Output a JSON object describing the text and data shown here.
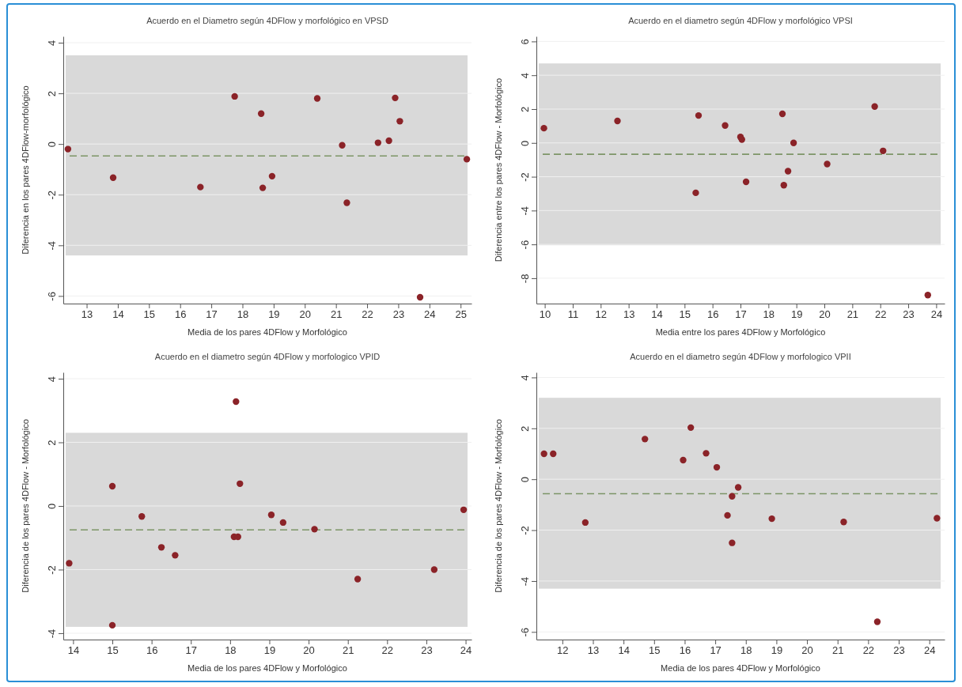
{
  "chart_data": [
    {
      "type": "scatter",
      "title": "Acuerdo en el Diametro según 4DFlow y morfológico en VPSD",
      "xlabel": "Media de los pares 4DFlow y Morfológico",
      "ylabel": "Diferencia en los pares 4DFlow-morfológico",
      "xlim": [
        12.25,
        25.35
      ],
      "ylim": [
        -6.3,
        4.25
      ],
      "xticks": [
        13,
        14,
        15,
        16,
        17,
        18,
        19,
        20,
        21,
        22,
        23,
        24,
        25
      ],
      "yticks": [
        -6,
        -4,
        -2,
        0,
        2,
        4
      ],
      "grid": "y",
      "marker": "circle",
      "bands": [
        {
          "axis": "y",
          "from": -4.4,
          "to": 3.5,
          "color": "#d9d9d9"
        }
      ],
      "ref_lines": [
        {
          "axis": "y",
          "value": -0.47,
          "color": "#7d9567",
          "line_style": "dashed"
        }
      ],
      "series": [
        {
          "color": "#8b2328",
          "x": [
            12.4,
            13.85,
            16.65,
            17.75,
            18.6,
            18.65,
            18.95,
            20.4,
            21.2,
            21.35,
            22.35,
            22.7,
            22.9,
            23.05,
            23.7,
            25.2
          ],
          "values": [
            -0.2,
            -1.33,
            -1.7,
            1.88,
            1.2,
            -1.73,
            -1.27,
            1.8,
            -0.05,
            -2.32,
            0.05,
            0.13,
            1.82,
            0.9,
            -6.05,
            -0.6
          ]
        }
      ]
    },
    {
      "type": "scatter",
      "title": "Acuerdo en el diametro según 4DFlow y morfológico VPSI",
      "xlabel": "Media entre los pares 4DFlow y Morfológico",
      "ylabel": "Diferencia entre los pares 4DFlow - Morfológico",
      "xlim": [
        9.7,
        24.3
      ],
      "ylim": [
        -9.5,
        6.3
      ],
      "xticks": [
        10,
        11,
        12,
        13,
        14,
        15,
        16,
        17,
        18,
        19,
        20,
        21,
        22,
        23,
        24
      ],
      "yticks": [
        -8,
        -6,
        -4,
        -2,
        0,
        2,
        4,
        6
      ],
      "grid": "y",
      "marker": "circle",
      "bands": [
        {
          "axis": "y",
          "from": -6.05,
          "to": 4.7,
          "color": "#d9d9d9"
        }
      ],
      "ref_lines": [
        {
          "axis": "y",
          "value": -0.67,
          "color": "#7d9567",
          "line_style": "dashed"
        }
      ],
      "series": [
        {
          "color": "#8b2328",
          "x": [
            9.97,
            12.6,
            15.4,
            15.5,
            16.45,
            17.0,
            17.05,
            17.2,
            18.5,
            18.55,
            18.7,
            18.9,
            20.1,
            21.8,
            22.1,
            23.7
          ],
          "values": [
            0.87,
            1.3,
            -2.95,
            1.62,
            1.03,
            0.35,
            0.2,
            -2.3,
            1.72,
            -2.5,
            -1.67,
            0.0,
            -1.25,
            2.15,
            -0.47,
            -9.0
          ]
        }
      ]
    },
    {
      "type": "scatter",
      "title": "Acuerdo en el diametro según 4DFlow y morfologico VPID",
      "xlabel": "Media de los pares 4DFlow y Morfológico",
      "ylabel": "Diferencia de los pares 4DFlow - Morfológico",
      "xlim": [
        13.75,
        24.15
      ],
      "ylim": [
        -4.2,
        4.2
      ],
      "xticks": [
        14,
        15,
        16,
        17,
        18,
        19,
        20,
        21,
        22,
        23,
        24
      ],
      "yticks": [
        -4,
        -2,
        0,
        2,
        4
      ],
      "grid": "y",
      "marker": "circle",
      "bands": [
        {
          "axis": "y",
          "from": -3.8,
          "to": 2.3,
          "color": "#d9d9d9"
        }
      ],
      "ref_lines": [
        {
          "axis": "y",
          "value": -0.75,
          "color": "#7d9567",
          "line_style": "dashed"
        }
      ],
      "series": [
        {
          "color": "#8b2328",
          "x": [
            13.9,
            15.0,
            15.0,
            15.75,
            16.25,
            16.6,
            18.1,
            18.15,
            18.2,
            18.25,
            19.05,
            19.35,
            20.15,
            21.25,
            23.2,
            23.95
          ],
          "values": [
            -1.8,
            0.62,
            -3.75,
            -0.33,
            -1.3,
            -1.55,
            -0.97,
            3.28,
            -0.97,
            0.7,
            -0.28,
            -0.52,
            -0.73,
            -2.3,
            -2.0,
            -0.12
          ]
        }
      ]
    },
    {
      "type": "scatter",
      "title": "Acuerdo en el diametro según 4DFlow y morfologico VPII",
      "xlabel": "Media de los pares 4DFlow y Morfológico",
      "ylabel": "Diferencia de los pares 4DFlow - Morfológico",
      "xlim": [
        11.15,
        24.5
      ],
      "ylim": [
        -6.3,
        4.2
      ],
      "xticks": [
        12,
        13,
        14,
        15,
        16,
        17,
        18,
        19,
        20,
        21,
        22,
        23,
        24
      ],
      "yticks": [
        -6,
        -4,
        -2,
        0,
        2,
        4
      ],
      "grid": "y",
      "marker": "circle",
      "bands": [
        {
          "axis": "y",
          "from": -4.3,
          "to": 3.2,
          "color": "#d9d9d9"
        }
      ],
      "ref_lines": [
        {
          "axis": "y",
          "value": -0.57,
          "color": "#7d9567",
          "line_style": "dashed"
        }
      ],
      "series": [
        {
          "color": "#8b2328",
          "x": [
            11.4,
            11.7,
            12.75,
            14.7,
            15.95,
            16.2,
            16.7,
            17.05,
            17.4,
            17.55,
            17.55,
            17.75,
            18.85,
            21.2,
            22.3,
            24.25
          ],
          "values": [
            1.0,
            1.0,
            -1.7,
            1.58,
            0.75,
            2.03,
            1.02,
            0.47,
            -1.42,
            -0.67,
            -2.5,
            -0.32,
            -1.55,
            -1.68,
            -5.6,
            -1.53
          ]
        }
      ]
    }
  ]
}
